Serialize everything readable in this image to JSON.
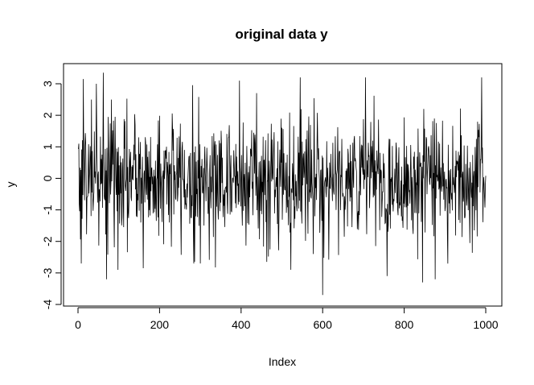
{
  "chart_data": {
    "type": "line",
    "title": "original data y",
    "xlabel": "Index",
    "ylabel": "y",
    "xlim": [
      1,
      1000
    ],
    "ylim": [
      -4,
      3.4
    ],
    "x_ticks": [
      0,
      200,
      400,
      600,
      800,
      1000
    ],
    "x_tick_labels": [
      "0",
      "200",
      "400",
      "600",
      "800",
      "1000"
    ],
    "y_ticks": [
      -4,
      -3,
      -2,
      -1,
      0,
      1,
      2,
      3
    ],
    "y_tick_labels": [
      "-4",
      "-3",
      "-2",
      "-1",
      "0",
      "1",
      "2",
      "3"
    ],
    "grid": false,
    "series": [
      {
        "color": "#000000",
        "n": 1000,
        "distribution": "approximately standard normal noise around 0, values spanning about -3.7 to 3.4",
        "peaks": [
          {
            "x": 2,
            "y": 1.1
          },
          {
            "x": 8,
            "y": -2.7
          },
          {
            "x": 13,
            "y": 3.15
          },
          {
            "x": 33,
            "y": 2.5
          },
          {
            "x": 45,
            "y": 3.0
          },
          {
            "x": 62,
            "y": 3.35
          },
          {
            "x": 70,
            "y": -3.2
          },
          {
            "x": 82,
            "y": 2.5
          },
          {
            "x": 98,
            "y": -2.9
          },
          {
            "x": 160,
            "y": -2.85
          },
          {
            "x": 284,
            "y": -2.7
          },
          {
            "x": 300,
            "y": -2.7
          },
          {
            "x": 396,
            "y": 3.1
          },
          {
            "x": 463,
            "y": -2.65
          },
          {
            "x": 522,
            "y": -2.9
          },
          {
            "x": 545,
            "y": 3.2
          },
          {
            "x": 600,
            "y": -3.7
          },
          {
            "x": 705,
            "y": 3.2
          },
          {
            "x": 758,
            "y": -3.1
          },
          {
            "x": 845,
            "y": -3.3
          },
          {
            "x": 876,
            "y": -3.2
          },
          {
            "x": 990,
            "y": 3.2
          }
        ]
      }
    ]
  }
}
